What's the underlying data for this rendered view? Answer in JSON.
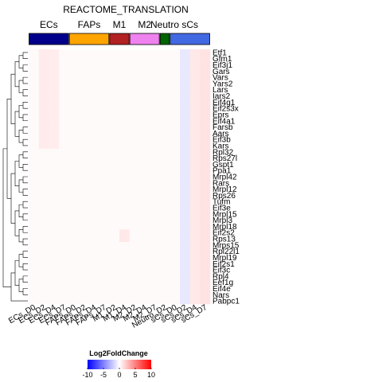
{
  "chart_data": {
    "type": "heatmap",
    "title": "REACTOME_TRANSLATION",
    "groups": [
      {
        "name": "ECs",
        "color": "#00008B",
        "columns": 4
      },
      {
        "name": "FAPs",
        "color": "#FFA500",
        "columns": 4
      },
      {
        "name": "M1",
        "color": "#B22222",
        "columns": 2
      },
      {
        "name": "M2",
        "color": "#EE82EE",
        "columns": 3
      },
      {
        "name": "Neutro",
        "color": "#006400",
        "columns": 1
      },
      {
        "name": "sCs",
        "color": "#4169E1",
        "columns": 4
      }
    ],
    "columns": [
      "ECs_D0",
      "ECs_D2",
      "ECs_D4",
      "ECs_D7",
      "FAPs_D0",
      "FAPs_D2",
      "FAPs_D4",
      "FAPs_D7",
      "M1_D2",
      "M1_D4",
      "M2_D2",
      "M2_D4",
      "M2_D7",
      "Neutro_D2",
      "sCs_D0",
      "sCs_D2",
      "sCs_D4",
      "sCs_D7"
    ],
    "rows": [
      "Etf1",
      "Gfm1",
      "Eif3j1",
      "Gars",
      "Vars",
      "Yars2",
      "Lars",
      "Iars2",
      "Eif4g1",
      "Eif2s3x",
      "Eprs",
      "Eif4a1",
      "Farsb",
      "Aars",
      "Eif3b",
      "Kars",
      "Rpl32",
      "Rps27l",
      "Gspt1",
      "Ppa1",
      "Mrpl42",
      "Rars",
      "Mrpl12",
      "Rps26",
      "Tufm",
      "Eif3e",
      "Mrpl15",
      "Mrpl3",
      "Mrpl18",
      "Eif2s2",
      "Rps13",
      "Mrps15",
      "Rpl22l1",
      "Mrpl19",
      "Eif2s1",
      "Eif3c",
      "Rpl4",
      "Eef1g",
      "Eif4e",
      "Nars",
      "Pabpc1"
    ],
    "cell_default": 0.2,
    "cell_overrides": [
      {
        "col": 1,
        "rows": [
          0,
          1,
          2,
          3,
          4,
          5,
          6,
          7,
          8,
          9,
          10,
          11,
          12,
          13,
          14,
          15
        ],
        "value": 0.8
      },
      {
        "col": 2,
        "rows": [
          0,
          1,
          2,
          3,
          4,
          5,
          6,
          7,
          8,
          9,
          10,
          11,
          12,
          13,
          14,
          15
        ],
        "value": 0.7
      },
      {
        "col": 15,
        "rows": [
          0,
          1,
          2,
          3,
          4,
          5,
          6,
          7,
          8,
          9,
          10,
          11,
          12,
          13,
          14,
          15,
          16,
          17,
          18,
          19,
          20,
          21,
          22,
          23,
          24,
          25,
          26,
          27,
          28,
          29,
          30,
          31,
          32,
          33,
          34,
          35,
          36,
          37,
          38,
          39,
          40
        ],
        "value": -0.9
      },
      {
        "col": 16,
        "rows": [
          0,
          1,
          2,
          3,
          4,
          5,
          6,
          7,
          8,
          9,
          10,
          11,
          12,
          13,
          14,
          15,
          16,
          17,
          18,
          19,
          20,
          21,
          22,
          23,
          24,
          25,
          26,
          27,
          28,
          29,
          30,
          31,
          32,
          33,
          34,
          35,
          36,
          37,
          38,
          39,
          40
        ],
        "value": 0.9
      },
      {
        "col": 17,
        "rows": [
          0,
          1,
          2,
          3,
          4,
          5,
          6,
          7,
          8,
          9,
          10,
          11,
          12,
          13,
          14,
          15,
          16,
          17,
          18,
          19,
          20,
          21,
          22,
          23,
          24,
          25,
          26,
          27,
          28,
          29,
          30,
          31,
          32,
          33,
          34,
          35,
          36,
          37,
          38,
          39,
          40
        ],
        "value": 1.1
      },
      {
        "col": 9,
        "rows": [
          29,
          30
        ],
        "value": 0.9
      }
    ],
    "legend": {
      "title": "Log2FoldChange",
      "ticks": [
        -10,
        -5,
        0,
        5,
        10
      ],
      "colors": [
        "#0000FF",
        "#FFFFFF",
        "#FF0000"
      ],
      "range": [
        -10,
        10
      ],
      "placement": "bottom"
    }
  }
}
